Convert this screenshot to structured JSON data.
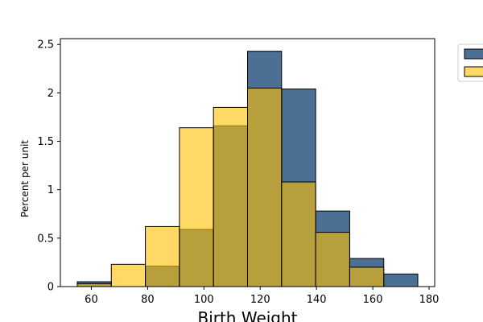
{
  "chart_data": {
    "type": "histogram",
    "xlabel": "Birth Weight",
    "ylabel": "Percent per unit",
    "xlim": [
      49.0,
      182.0
    ],
    "ylim": [
      0,
      2.56
    ],
    "xticks": [
      60,
      80,
      100,
      120,
      140,
      160,
      180
    ],
    "yticks": [
      0,
      0.5,
      1,
      1.5,
      2,
      2.5
    ],
    "ytick_labels": [
      "0",
      "0.5",
      "1",
      "1.5",
      "2",
      "2.5"
    ],
    "bin_edges": [
      55.0,
      67.1,
      79.2,
      91.3,
      103.4,
      115.5,
      127.6,
      139.7,
      151.8,
      163.9,
      176.0
    ],
    "series": [
      {
        "color": "#003366",
        "opacity": 0.7,
        "values": [
          0.05,
          0.0,
          0.21,
          0.59,
          1.66,
          2.43,
          2.04,
          0.78,
          0.29,
          0.13
        ]
      },
      {
        "color": "#ffc000",
        "opacity": 0.6,
        "values": [
          0.03,
          0.23,
          0.62,
          1.64,
          1.85,
          2.05,
          1.08,
          0.56,
          0.2,
          0.0
        ]
      }
    ],
    "legend": {
      "placement": "outside-top-right",
      "entries": [
        "",
        ""
      ]
    },
    "grid": false
  }
}
